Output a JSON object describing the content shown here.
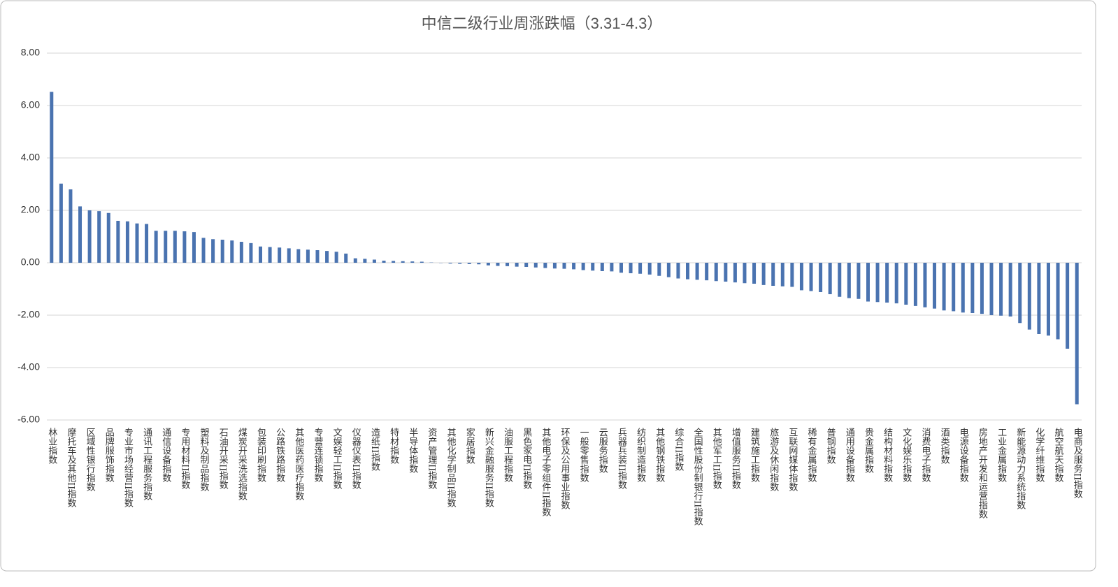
{
  "chart_data": {
    "type": "bar",
    "title": "中信二级行业周涨跌幅（3.31-4.3）",
    "categories": [
      "林业指数",
      null,
      "摩托车及其他II指数",
      null,
      "区域性银行指数",
      null,
      "品牌服饰指数",
      null,
      "专业市场经营II指数",
      null,
      "通讯工程服务指数",
      null,
      "通信设备指数",
      null,
      "专用材料II指数",
      null,
      "塑料及制品指数",
      null,
      "石油开采II指数",
      null,
      "煤炭开采洗选指数",
      null,
      "包装印刷指数",
      null,
      "公路铁路指数",
      null,
      "其他医药医疗指数",
      null,
      "专营连锁指数",
      null,
      "文娱轻工II指数",
      null,
      "仪器仪表II指数",
      null,
      "造纸II指数",
      null,
      "特材指数",
      null,
      "半导体指数",
      null,
      "资产管理II指数",
      null,
      "其他化学制品II指数",
      null,
      "家居指数",
      null,
      "新兴金融服务II指数",
      null,
      "油服工程指数",
      null,
      "黑色家电II指数",
      null,
      "其他电子零组件II指数",
      null,
      "环保及公用事业指数",
      null,
      "一般零售指数",
      null,
      "云服务指数",
      null,
      "兵器兵装II指数",
      null,
      "纺织制造指数",
      null,
      "其他钢铁指数",
      null,
      "综合II指数",
      null,
      "全国性股份制银行II指数",
      null,
      "其他军工II指数",
      null,
      "增值服务II指数",
      null,
      "建筑施工指数",
      null,
      "旅游及休闲指数",
      null,
      "互联网媒体指数",
      null,
      "稀有金属指数",
      null,
      "普钢指数",
      null,
      "通用设备指数",
      null,
      "贵金属指数",
      null,
      "结构材料指数",
      null,
      "文化娱乐指数",
      null,
      "消费电子指数",
      null,
      "酒类指数",
      null,
      "电源设备指数",
      null,
      "房地产开发和运营指数",
      null,
      "工业金属指数",
      null,
      "新能源动力系统指数",
      null,
      "化学纤维指数",
      null,
      "航空航天指数",
      null,
      "电商及服务II指数"
    ],
    "values": [
      6.52,
      3.02,
      2.8,
      2.15,
      2.0,
      1.97,
      1.9,
      1.6,
      1.58,
      1.5,
      1.48,
      1.22,
      1.22,
      1.22,
      1.2,
      1.17,
      0.95,
      0.9,
      0.88,
      0.85,
      0.8,
      0.75,
      0.62,
      0.6,
      0.58,
      0.55,
      0.52,
      0.5,
      0.48,
      0.45,
      0.42,
      0.35,
      0.17,
      0.15,
      0.12,
      0.08,
      0.07,
      0.06,
      0.05,
      0.04,
      0.01,
      -0.01,
      -0.03,
      -0.04,
      -0.05,
      -0.06,
      -0.1,
      -0.12,
      -0.13,
      -0.15,
      -0.16,
      -0.18,
      -0.2,
      -0.22,
      -0.23,
      -0.25,
      -0.28,
      -0.3,
      -0.32,
      -0.33,
      -0.38,
      -0.4,
      -0.42,
      -0.45,
      -0.5,
      -0.55,
      -0.6,
      -0.63,
      -0.65,
      -0.67,
      -0.7,
      -0.72,
      -0.75,
      -0.78,
      -0.8,
      -0.85,
      -0.88,
      -0.9,
      -0.92,
      -1.05,
      -1.08,
      -1.12,
      -1.2,
      -1.3,
      -1.35,
      -1.38,
      -1.48,
      -1.5,
      -1.52,
      -1.55,
      -1.6,
      -1.65,
      -1.7,
      -1.75,
      -1.82,
      -1.85,
      -1.9,
      -1.92,
      -1.95,
      -2.0,
      -2.02,
      -2.05,
      -2.3,
      -2.55,
      -2.72,
      -2.78,
      -2.92,
      -3.28,
      -5.4
    ],
    "color": "#4a73b0",
    "ylim": [
      -6,
      8
    ],
    "yticks": [
      {
        "value": -6,
        "label": "-6.00"
      },
      {
        "value": -4,
        "label": "-4.00"
      },
      {
        "value": -2,
        "label": "-2.00"
      },
      {
        "value": 0,
        "label": "0.00"
      },
      {
        "value": 2,
        "label": "2.00"
      },
      {
        "value": 4,
        "label": "4.00"
      },
      {
        "value": 6,
        "label": "6.00"
      },
      {
        "value": 8,
        "label": "8.00"
      }
    ],
    "grid": true
  }
}
